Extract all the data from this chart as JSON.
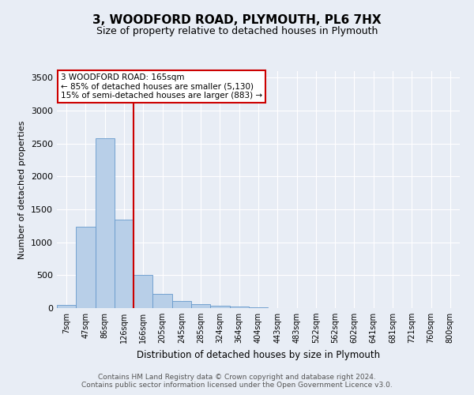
{
  "title1": "3, WOODFORD ROAD, PLYMOUTH, PL6 7HX",
  "title2": "Size of property relative to detached houses in Plymouth",
  "xlabel": "Distribution of detached houses by size in Plymouth",
  "ylabel": "Number of detached properties",
  "footnote1": "Contains HM Land Registry data © Crown copyright and database right 2024.",
  "footnote2": "Contains public sector information licensed under the Open Government Licence v3.0.",
  "categories": [
    "7sqm",
    "47sqm",
    "86sqm",
    "126sqm",
    "166sqm",
    "205sqm",
    "245sqm",
    "285sqm",
    "324sqm",
    "364sqm",
    "404sqm",
    "443sqm",
    "483sqm",
    "522sqm",
    "562sqm",
    "602sqm",
    "641sqm",
    "681sqm",
    "721sqm",
    "760sqm",
    "800sqm"
  ],
  "values": [
    50,
    1240,
    2580,
    1350,
    500,
    215,
    105,
    55,
    40,
    30,
    10,
    5,
    5,
    5,
    5,
    5,
    5,
    5,
    5,
    5,
    5
  ],
  "bar_color": "#b8cfe8",
  "bar_edge_color": "#6699cc",
  "vline_color": "#cc0000",
  "ylim": [
    0,
    3600
  ],
  "yticks": [
    0,
    500,
    1000,
    1500,
    2000,
    2500,
    3000,
    3500
  ],
  "annotation_text": "3 WOODFORD ROAD: 165sqm\n← 85% of detached houses are smaller (5,130)\n15% of semi-detached houses are larger (883) →",
  "annotation_box_color": "#ffffff",
  "annotation_box_edge": "#cc0000",
  "bg_color": "#e8edf5",
  "plot_bg_color": "#e8edf5",
  "grid_color": "#ffffff"
}
